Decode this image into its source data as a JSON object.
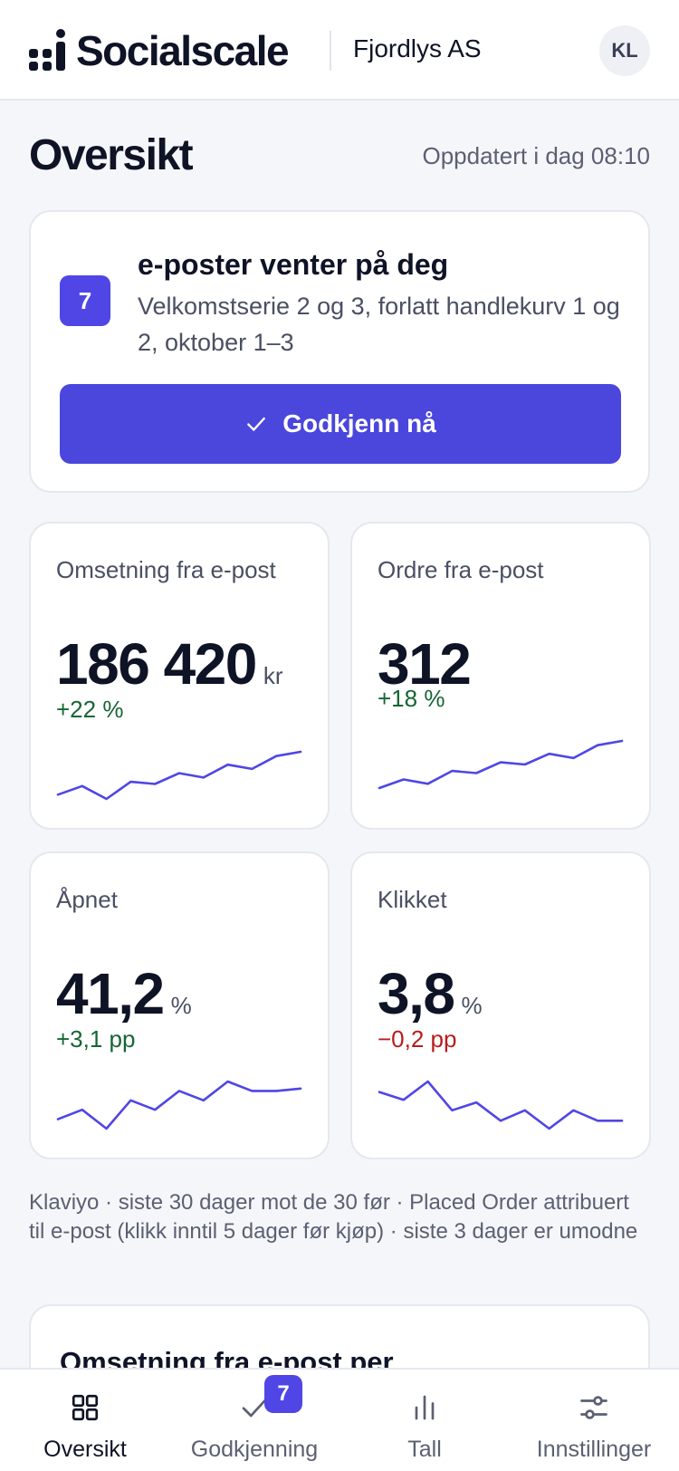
{
  "header": {
    "brand": "Socialscale",
    "org": "Fjordlys AS",
    "avatar_initials": "KL"
  },
  "page": {
    "title": "Oversikt",
    "updated": "Oppdatert i dag 08:10"
  },
  "pending": {
    "count": "7",
    "title": "e-poster venter på deg",
    "description": "Velkomstserie 2 og 3, forlatt handlekurv 1 og 2, oktober 1–3",
    "button_label": "Godkjenn nå",
    "button_icon": "check-icon"
  },
  "metrics": [
    {
      "label": "Omsetning fra e-post",
      "value": "186 420",
      "unit": "kr",
      "delta": "+22 %",
      "trend": "positive",
      "spark": [
        3,
        5,
        2,
        6,
        5.5,
        8,
        7,
        10,
        9,
        12,
        13
      ]
    },
    {
      "label": "Ordre fra e-post",
      "value": "312",
      "unit": "",
      "delta": "+18 %",
      "trend": "positive",
      "spark": [
        3,
        5,
        4,
        7,
        6.5,
        9,
        8.5,
        11,
        10,
        13,
        14
      ]
    },
    {
      "label": "Åpnet",
      "value": "41,2",
      "unit": "%",
      "delta": "+3,1 pp",
      "trend": "positive",
      "spark": [
        5,
        7,
        3,
        9,
        7,
        11,
        9,
        13,
        11,
        11,
        11.5
      ]
    },
    {
      "label": "Klikket",
      "value": "3,8",
      "unit": "%",
      "delta": "−0,2 pp",
      "trend": "negative",
      "spark": [
        10,
        8.5,
        12,
        6.5,
        8,
        4.5,
        6.5,
        3,
        6.5,
        4.5,
        4.5
      ]
    }
  ],
  "footnote": "Klaviyo · siste 30 dager mot de 30 før · Placed Order attribuert til e-post (klikk inntil 5 dager før kjøp) · siste 3 dager er umodne",
  "chart_card": {
    "title": "Omsetning fra e-post per"
  },
  "nav": {
    "items": [
      {
        "label": "Oversikt",
        "icon": "grid-icon",
        "active": true
      },
      {
        "label": "Godkjenning",
        "icon": "check-icon",
        "active": false,
        "badge": "7"
      },
      {
        "label": "Tall",
        "icon": "bar-chart-icon",
        "active": false
      },
      {
        "label": "Innstillinger",
        "icon": "sliders-icon",
        "active": false
      }
    ]
  },
  "colors": {
    "accent": "#4b46dc",
    "positive": "#166534",
    "negative": "#b91c1c",
    "spark_line": "#4f46e5"
  }
}
